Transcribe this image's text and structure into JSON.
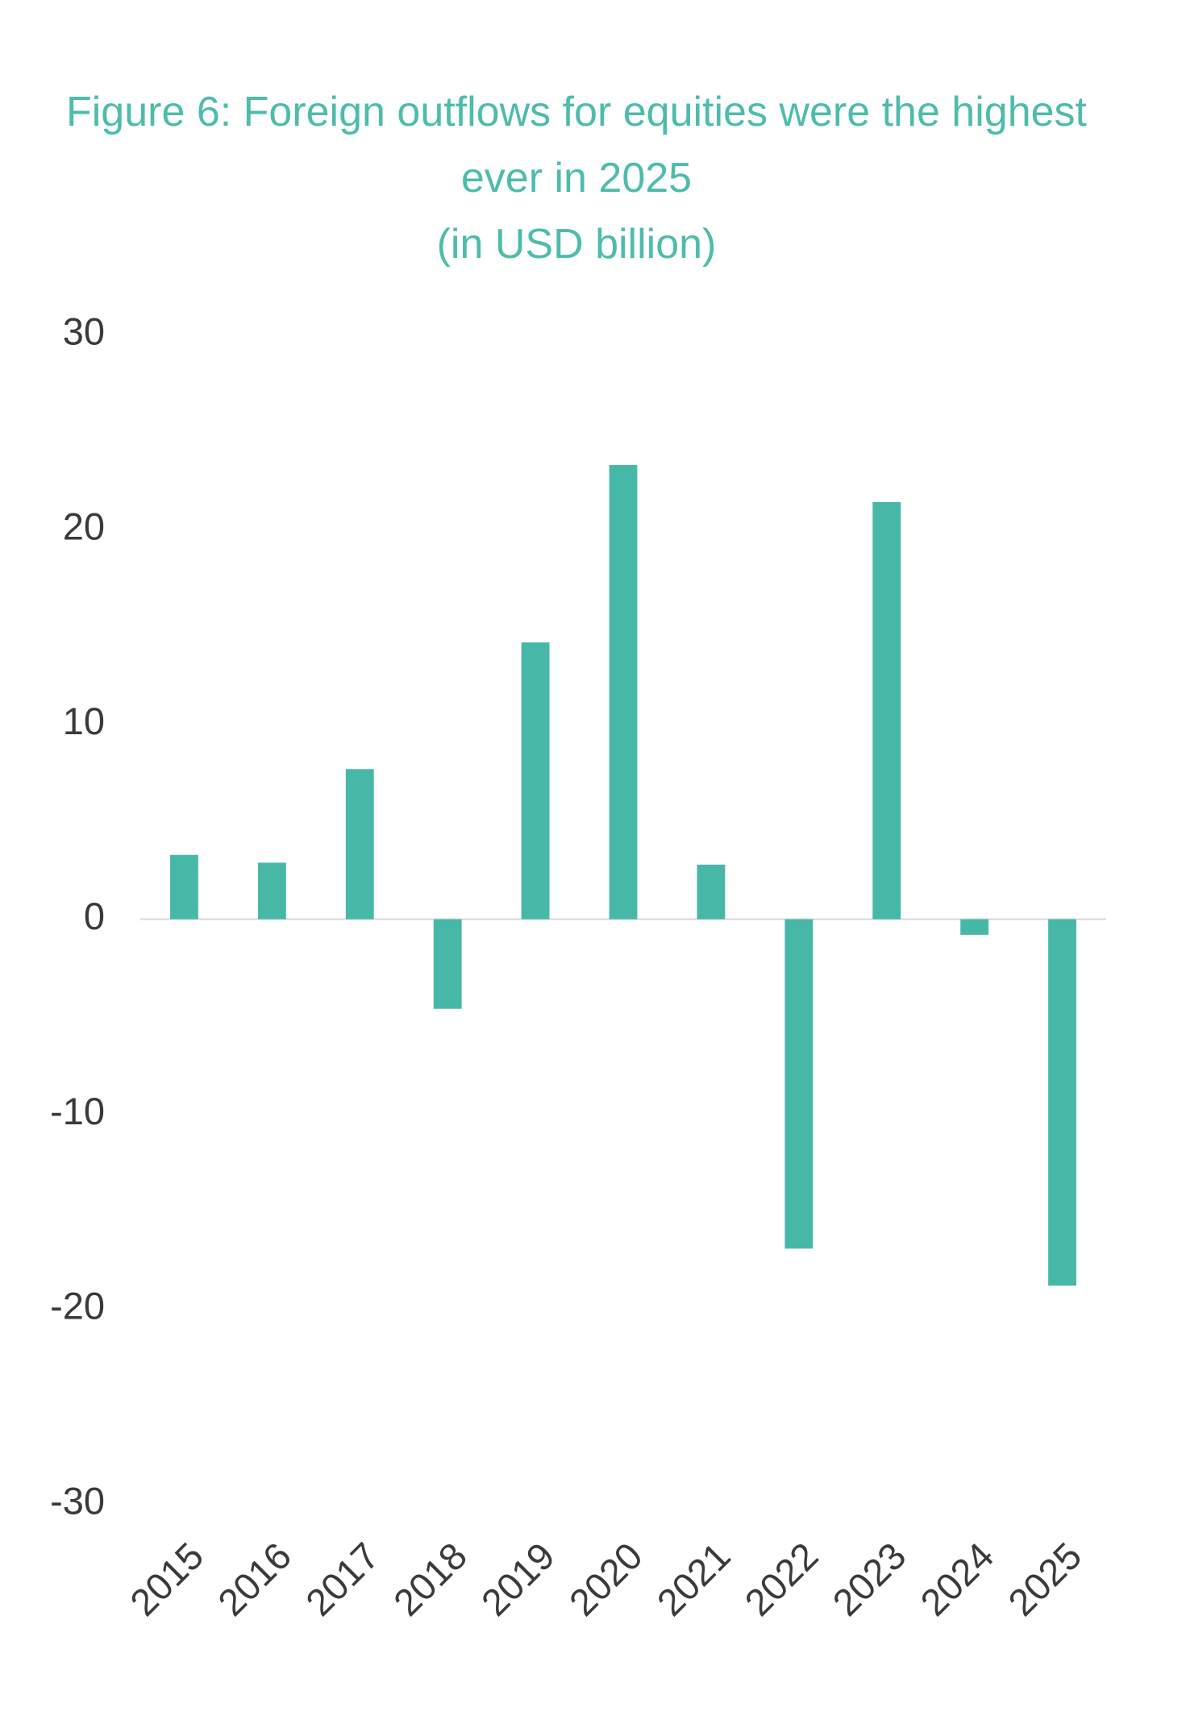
{
  "chart_data": {
    "type": "bar",
    "title": "Figure 6: Foreign outflows for equities were the highest ever in 2025",
    "subtitle": "(in USD billion)",
    "categories": [
      "2015",
      "2016",
      "2017",
      "2018",
      "2019",
      "2020",
      "2021",
      "2022",
      "2023",
      "2024",
      "2025"
    ],
    "values": [
      3.3,
      2.9,
      7.7,
      -4.6,
      14.2,
      23.3,
      2.8,
      -16.9,
      21.4,
      -0.8,
      -18.8
    ],
    "color": "#47b8a7",
    "ylim": [
      -30,
      30
    ],
    "yticks": [
      -30,
      -20,
      -10,
      0,
      10,
      20,
      30
    ],
    "grid": false
  }
}
